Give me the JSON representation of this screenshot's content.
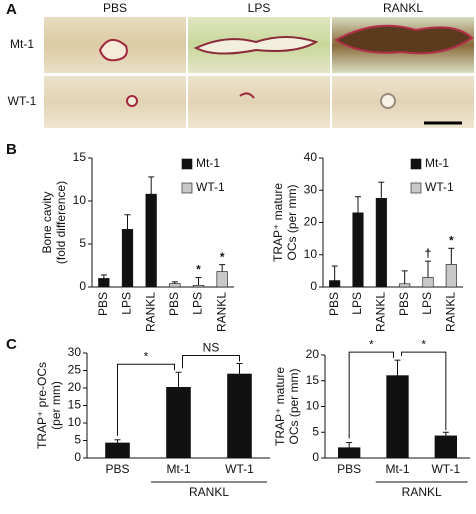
{
  "panels": [
    "A",
    "B",
    "C"
  ],
  "panel_a": {
    "columns": [
      "PBS",
      "LPS",
      "RANKL"
    ],
    "rows": [
      "Mt-1",
      "WT-1"
    ]
  },
  "chart_data": [
    {
      "type": "bar",
      "y_label": [
        "Bone cavity",
        "(fold difference)"
      ],
      "categories": [
        "PBS",
        "LPS",
        "RANKL",
        "PBS",
        "LPS",
        "RANKL"
      ],
      "series": [
        {
          "name": "Mt-1",
          "color": "#111111",
          "values": [
            1,
            6.7,
            10.8,
            null,
            null,
            null
          ],
          "errors": [
            0.4,
            1.7,
            2,
            null,
            null,
            null
          ]
        },
        {
          "name": "WT-1",
          "color": "#c8c8c8",
          "values": [
            null,
            null,
            null,
            0.4,
            0.2,
            1.8
          ],
          "errors": [
            null,
            null,
            null,
            0.2,
            0.9,
            0.8
          ]
        }
      ],
      "annotations": [
        "*",
        "*"
      ],
      "ylim": [
        0,
        15
      ],
      "yticks": [
        0,
        5,
        10,
        15
      ],
      "legend": "upper right"
    },
    {
      "type": "bar",
      "y_label": [
        "TRAP⁺ mature",
        "OCs (per mm)"
      ],
      "categories": [
        "PBS",
        "LPS",
        "RANKL",
        "PBS",
        "LPS",
        "RANKL"
      ],
      "series": [
        {
          "name": "Mt-1",
          "color": "#111111",
          "values": [
            2,
            23,
            27.5,
            null,
            null,
            null
          ],
          "errors": [
            4.5,
            5,
            5,
            null,
            null,
            null
          ]
        },
        {
          "name": "WT-1",
          "color": "#c8c8c8",
          "values": [
            null,
            null,
            null,
            1,
            3,
            7
          ],
          "errors": [
            null,
            null,
            null,
            4,
            5,
            5
          ]
        }
      ],
      "annotations": [
        "†",
        "*"
      ],
      "ylim": [
        0,
        40
      ],
      "yticks": [
        0,
        10,
        20,
        30,
        40
      ],
      "legend": "upper right"
    },
    {
      "type": "bar",
      "y_label": [
        "TRAP⁺ pre-OCs",
        "(per mm)"
      ],
      "categories": [
        "PBS",
        "Mt-1",
        "WT-1"
      ],
      "group_label": "RANKL",
      "values": [
        4.3,
        20.2,
        24
      ],
      "errors": [
        0.9,
        4.3,
        3
      ],
      "color": "#111111",
      "brackets": [
        "*",
        "NS"
      ],
      "ylim": [
        0,
        30
      ],
      "yticks": [
        0,
        5,
        10,
        15,
        20,
        25,
        30
      ]
    },
    {
      "type": "bar",
      "y_label": [
        "TRAP⁺ mature",
        "OCs (per mm)"
      ],
      "categories": [
        "PBS",
        "Mt-1",
        "WT-1"
      ],
      "group_label": "RANKL",
      "values": [
        2,
        16,
        4.3
      ],
      "errors": [
        1,
        3,
        0.7
      ],
      "color": "#111111",
      "brackets": [
        "*",
        "*"
      ],
      "ylim": [
        0,
        20
      ],
      "yticks": [
        0,
        5,
        10,
        15,
        20
      ]
    }
  ]
}
